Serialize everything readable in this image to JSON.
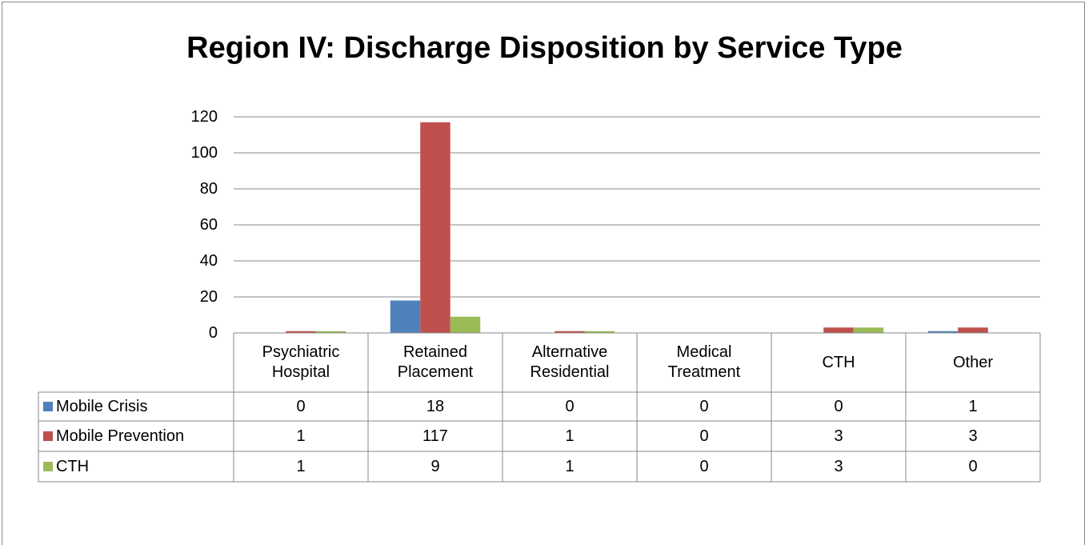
{
  "chart_data": {
    "type": "bar",
    "title": "Region IV: Discharge Disposition by Service Type",
    "categories": [
      "Psychiatric Hospital",
      "Retained Placement",
      "Alternative Residential",
      "Medical Treatment",
      "CTH",
      "Other"
    ],
    "series": [
      {
        "name": "Mobile Crisis",
        "color": "#4f81bd",
        "values": [
          0,
          18,
          0,
          0,
          0,
          1
        ]
      },
      {
        "name": "Mobile Prevention",
        "color": "#c0504d",
        "values": [
          1,
          117,
          1,
          0,
          3,
          3
        ]
      },
      {
        "name": "CTH",
        "color": "#9bbb59",
        "values": [
          1,
          9,
          1,
          0,
          3,
          0
        ]
      }
    ],
    "ylim": [
      0,
      120
    ],
    "yticks": [
      0,
      20,
      40,
      60,
      80,
      100,
      120
    ],
    "grid": true,
    "legend": "data-table"
  }
}
